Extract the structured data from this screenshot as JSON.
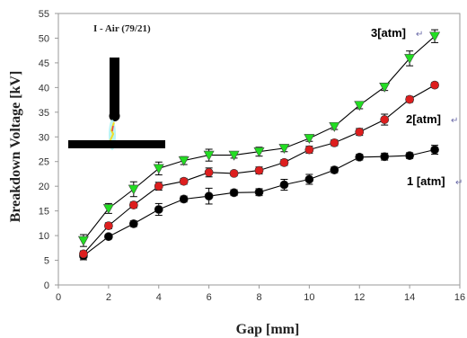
{
  "chart_data": {
    "type": "line",
    "title": "",
    "inset_label": "I - Air (79/21)",
    "xlabel": "Gap [mm]",
    "ylabel": "Breakdown Voltage [kV]",
    "xlim": [
      0,
      16
    ],
    "ylim": [
      0,
      55
    ],
    "xticks": [
      "0",
      "2",
      "4",
      "6",
      "8",
      "10",
      "12",
      "14",
      "16"
    ],
    "yticks": [
      "0",
      "5",
      "10",
      "15",
      "20",
      "25",
      "30",
      "35",
      "40",
      "45",
      "50",
      "55"
    ],
    "grid": false,
    "x": [
      1,
      2,
      3,
      4,
      5,
      6,
      7,
      8,
      9,
      10,
      11,
      12,
      13,
      14,
      15
    ],
    "series": [
      {
        "name": "1 [atm]",
        "label_text": "1 [atm]",
        "return_mark": "↵",
        "marker": "circle",
        "color": "#000000",
        "values": [
          5.9,
          9.8,
          12.4,
          15.3,
          17.4,
          18.0,
          18.7,
          18.8,
          20.3,
          21.4,
          23.3,
          25.9,
          26.0,
          26.2,
          27.4
        ],
        "errors": [
          0.8,
          0.5,
          0.6,
          1.2,
          0.6,
          1.6,
          0.6,
          0.7,
          1.1,
          1.0,
          0.6,
          0.6,
          0.7,
          0.6,
          0.9
        ]
      },
      {
        "name": "2[atm]",
        "label_text": "2[atm]",
        "return_mark": "↵",
        "marker": "circle",
        "color": "#dd1e1e",
        "values": [
          6.3,
          12.0,
          16.2,
          20.0,
          21.0,
          22.8,
          22.6,
          23.2,
          24.8,
          27.4,
          28.8,
          31.0,
          33.5,
          37.6,
          40.5
        ],
        "errors": [
          0.6,
          0.6,
          0.6,
          0.8,
          0.6,
          0.9,
          0.5,
          0.7,
          0.6,
          0.7,
          0.6,
          0.7,
          1.1,
          0.6,
          0.5
        ]
      },
      {
        "name": "3[atm]",
        "label_text": "3[atm]",
        "return_mark": "↵",
        "marker": "triangle-down",
        "color": "#22dd22",
        "values": [
          9.0,
          15.5,
          19.4,
          23.6,
          25.2,
          26.3,
          26.3,
          27.0,
          27.7,
          29.7,
          32.1,
          36.4,
          40.1,
          45.9,
          50.4
        ],
        "errors": [
          1.2,
          1.0,
          1.5,
          1.3,
          0.8,
          1.2,
          0.6,
          0.9,
          0.7,
          0.6,
          0.6,
          0.7,
          0.7,
          1.5,
          1.3
        ]
      }
    ]
  }
}
